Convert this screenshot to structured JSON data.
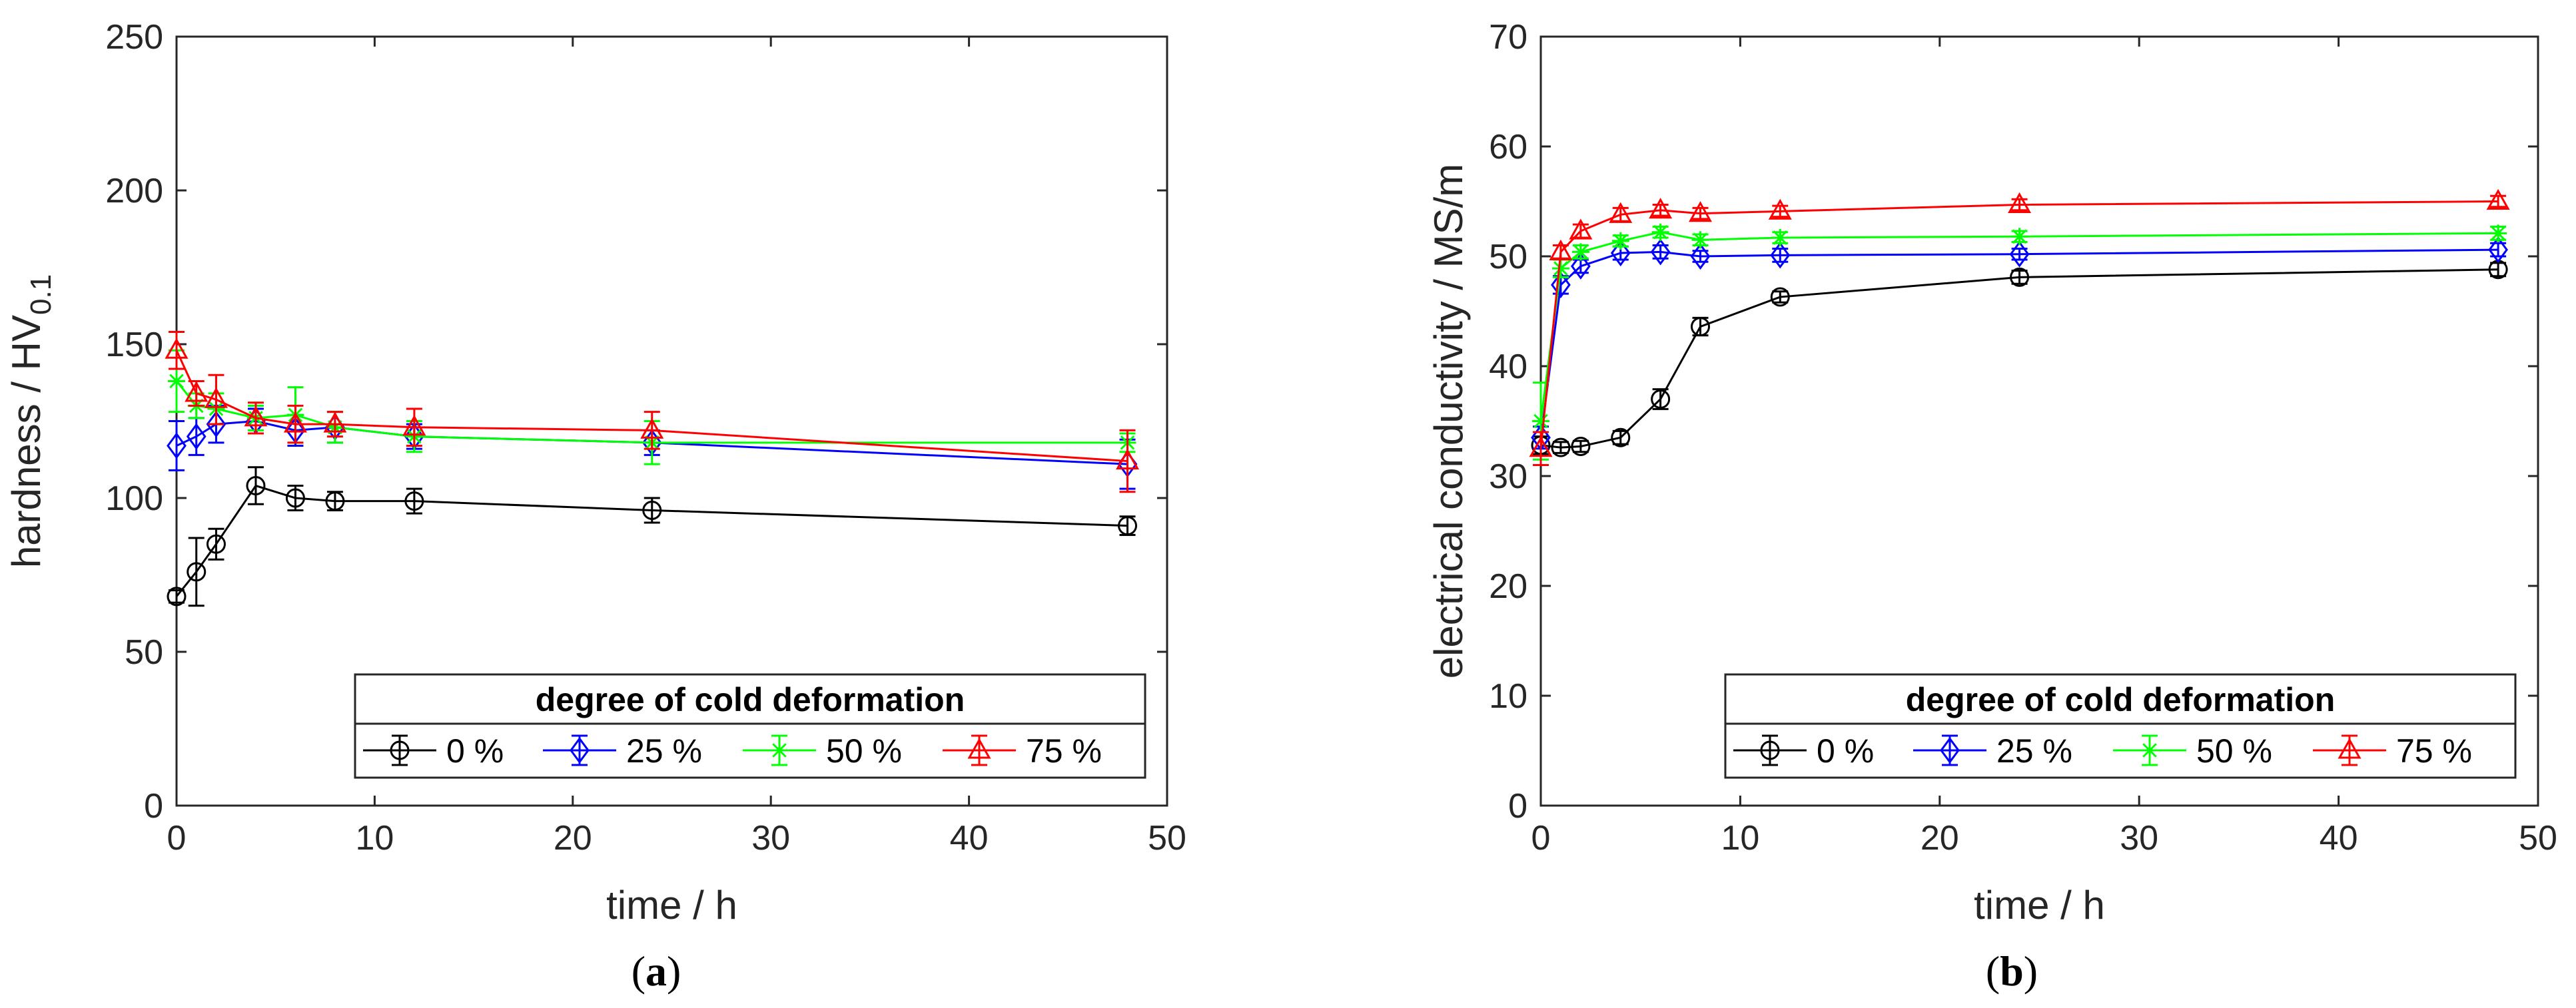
{
  "chart_data": [
    {
      "id": "a",
      "type": "line",
      "panel_letter": "a",
      "xlabel": "time / h",
      "ylabel_main": "hardness / HV",
      "ylabel_subscript": "0.1",
      "xlim": [
        0,
        50
      ],
      "ylim": [
        0,
        250
      ],
      "xticks": [
        0,
        10,
        20,
        30,
        40,
        50
      ],
      "yticks": [
        0,
        50,
        100,
        150,
        200,
        250
      ],
      "xtick_labels": [
        "0",
        "10",
        "20",
        "30",
        "40",
        "50"
      ],
      "ytick_labels": [
        "0",
        "50",
        "100",
        "150",
        "200",
        "250"
      ],
      "legend_title": "degree of cold deformation",
      "legend_position": "bottom-right",
      "series": [
        {
          "name": "0 %",
          "color": "#000000",
          "marker": "circle",
          "x": [
            0,
            1,
            2,
            4,
            6,
            8,
            12,
            24,
            48
          ],
          "y": [
            68,
            76,
            85,
            104,
            100,
            99,
            99,
            96,
            91
          ],
          "err": [
            2,
            11,
            5,
            6,
            4,
            3,
            4,
            4,
            3
          ]
        },
        {
          "name": "25 %",
          "color": "#0000ff",
          "marker": "diamond",
          "x": [
            0,
            1,
            2,
            4,
            6,
            8,
            12,
            24,
            48
          ],
          "y": [
            117,
            120,
            124,
            125,
            122,
            123,
            120,
            118,
            111
          ],
          "err": [
            8,
            6,
            6,
            4,
            5,
            5,
            4,
            4,
            8
          ]
        },
        {
          "name": "50 %",
          "color": "#00ff00",
          "marker": "star",
          "x": [
            0,
            1,
            2,
            4,
            6,
            8,
            12,
            24,
            48
          ],
          "y": [
            138,
            130,
            129,
            126,
            127,
            123,
            120,
            118,
            118
          ],
          "err": [
            10,
            4,
            5,
            4,
            9,
            5,
            5,
            7,
            3
          ]
        },
        {
          "name": "75 %",
          "color": "#ff0000",
          "marker": "triangle",
          "x": [
            0,
            1,
            2,
            4,
            6,
            8,
            12,
            24,
            48
          ],
          "y": [
            148,
            134,
            132,
            126,
            124,
            124,
            123,
            122,
            112
          ],
          "err": [
            6,
            4,
            8,
            5,
            6,
            4,
            6,
            6,
            10
          ]
        }
      ]
    },
    {
      "id": "b",
      "type": "line",
      "panel_letter": "b",
      "xlabel": "time / h",
      "ylabel_main": "electrical conductivity / MS/m",
      "ylabel_subscript": "",
      "xlim": [
        0,
        50
      ],
      "ylim": [
        0,
        70
      ],
      "xticks": [
        0,
        10,
        20,
        30,
        40,
        50
      ],
      "yticks": [
        0,
        10,
        20,
        30,
        40,
        50,
        60,
        70
      ],
      "xtick_labels": [
        "0",
        "10",
        "20",
        "30",
        "40",
        "50"
      ],
      "ytick_labels": [
        "0",
        "10",
        "20",
        "30",
        "40",
        "50",
        "60",
        "70"
      ],
      "legend_title": "degree of cold deformation",
      "legend_position": "bottom-right",
      "series": [
        {
          "name": "0 %",
          "color": "#000000",
          "marker": "circle",
          "x": [
            0,
            1,
            2,
            4,
            6,
            8,
            12,
            24,
            48
          ],
          "y": [
            32.8,
            32.6,
            32.7,
            33.5,
            37.0,
            43.6,
            46.3,
            48.1,
            48.8
          ],
          "err": [
            0.8,
            0.5,
            0.5,
            0.6,
            0.9,
            0.8,
            0.5,
            0.6,
            0.6
          ]
        },
        {
          "name": "25 %",
          "color": "#0000ff",
          "marker": "diamond",
          "x": [
            0,
            1,
            2,
            4,
            6,
            8,
            12,
            24,
            48
          ],
          "y": [
            33.5,
            47.4,
            49.1,
            50.3,
            50.4,
            50.0,
            50.1,
            50.2,
            50.6
          ],
          "err": [
            1.0,
            0.8,
            0.6,
            0.6,
            0.6,
            0.5,
            0.6,
            0.5,
            0.6
          ]
        },
        {
          "name": "50 %",
          "color": "#00ff00",
          "marker": "star",
          "x": [
            0,
            1,
            2,
            4,
            6,
            8,
            12,
            24,
            48
          ],
          "y": [
            35.0,
            48.9,
            50.4,
            51.4,
            52.2,
            51.5,
            51.7,
            51.8,
            52.1
          ],
          "err": [
            3.5,
            0.8,
            0.6,
            0.5,
            0.5,
            0.5,
            0.5,
            0.5,
            0.6
          ]
        },
        {
          "name": "75 %",
          "color": "#ff0000",
          "marker": "triangle",
          "x": [
            0,
            1,
            2,
            4,
            6,
            8,
            12,
            24,
            48
          ],
          "y": [
            32.5,
            50.4,
            52.3,
            53.8,
            54.2,
            53.9,
            54.1,
            54.7,
            55.0
          ],
          "err": [
            1.5,
            0.6,
            0.6,
            0.6,
            0.5,
            0.5,
            0.5,
            0.5,
            0.5
          ]
        }
      ]
    }
  ]
}
